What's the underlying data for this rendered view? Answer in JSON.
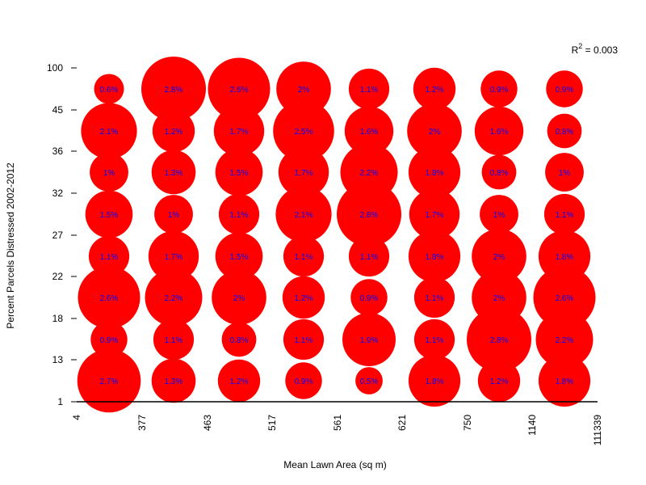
{
  "chart_data": {
    "type": "bubble",
    "xlabel": "Mean Lawn Area (sq m)",
    "ylabel": "Percent Parcels Distressed 2002-2012",
    "x_ticks": [
      "4",
      "377",
      "463",
      "517",
      "561",
      "621",
      "750",
      "1140",
      "111339"
    ],
    "y_ticks": [
      "1",
      "13",
      "18",
      "22",
      "27",
      "32",
      "36",
      "45",
      "100"
    ],
    "annotation": {
      "prefix": "R",
      "superscript": "2",
      "suffix": " = 0.003"
    },
    "bubble_color": "#ff0000",
    "label_color": "#0000ff",
    "rows": [
      [
        "2.7%",
        "1.3%",
        "1.2%",
        "0.9%",
        "0.5%",
        "1.8%",
        "1.2%",
        "1.8%"
      ],
      [
        "0.9%",
        "1.1%",
        "0.8%",
        "1.1%",
        "1.9%",
        "1.1%",
        "2.8%",
        "2.2%"
      ],
      [
        "2.6%",
        "2.2%",
        "2%",
        "1.2%",
        "0.9%",
        "1.1%",
        "2%",
        "2.6%"
      ],
      [
        "1.1%",
        "1.7%",
        "1.5%",
        "1.1%",
        "1.1%",
        "1.8%",
        "2%",
        "1.8%"
      ],
      [
        "1.5%",
        "1%",
        "1.1%",
        "2.1%",
        "2.8%",
        "1.7%",
        "1%",
        "1.1%"
      ],
      [
        "1%",
        "1.3%",
        "1.5%",
        "1.7%",
        "2.2%",
        "1.8%",
        "0.8%",
        "1%"
      ],
      [
        "2.1%",
        "1.2%",
        "1.7%",
        "2.5%",
        "1.6%",
        "2%",
        "1.6%",
        "0.8%"
      ],
      [
        "0.6%",
        "2.8%",
        "2.6%",
        "2%",
        "1.1%",
        "1.2%",
        "0.9%",
        "0.9%"
      ]
    ],
    "values": [
      [
        2.7,
        1.3,
        1.2,
        0.9,
        0.5,
        1.8,
        1.2,
        1.8
      ],
      [
        0.9,
        1.1,
        0.8,
        1.1,
        1.9,
        1.1,
        2.8,
        2.2
      ],
      [
        2.6,
        2.2,
        2.0,
        1.2,
        0.9,
        1.1,
        2.0,
        2.6
      ],
      [
        1.1,
        1.7,
        1.5,
        1.1,
        1.1,
        1.8,
        2.0,
        1.8
      ],
      [
        1.5,
        1.0,
        1.1,
        2.1,
        2.8,
        1.7,
        1.0,
        1.1
      ],
      [
        1.0,
        1.3,
        1.5,
        1.7,
        2.2,
        1.8,
        0.8,
        1.0
      ],
      [
        2.1,
        1.2,
        1.7,
        2.5,
        1.6,
        2.0,
        1.6,
        0.8
      ],
      [
        0.6,
        2.8,
        2.6,
        2.0,
        1.1,
        1.2,
        0.9,
        0.9
      ]
    ]
  }
}
